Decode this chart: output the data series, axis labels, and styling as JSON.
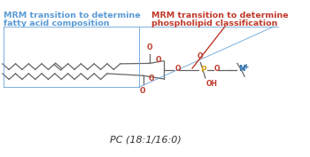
{
  "blue_text_line1": "MRM transition to determine",
  "blue_text_line2": "fatty acid composition",
  "red_text_line1": "MRM transition to determine",
  "red_text_line2": "phospholipid classification",
  "label_bottom": "PC (18:1/16:0)",
  "blue_color": "#5B9BD5",
  "red_color": "#C0392B",
  "dark_color": "#666666",
  "orange_color": "#D4A017",
  "navy_color": "#2E75B6",
  "bg_color": "#FFFFFF",
  "figsize": [
    3.5,
    1.77
  ],
  "dpi": 100
}
